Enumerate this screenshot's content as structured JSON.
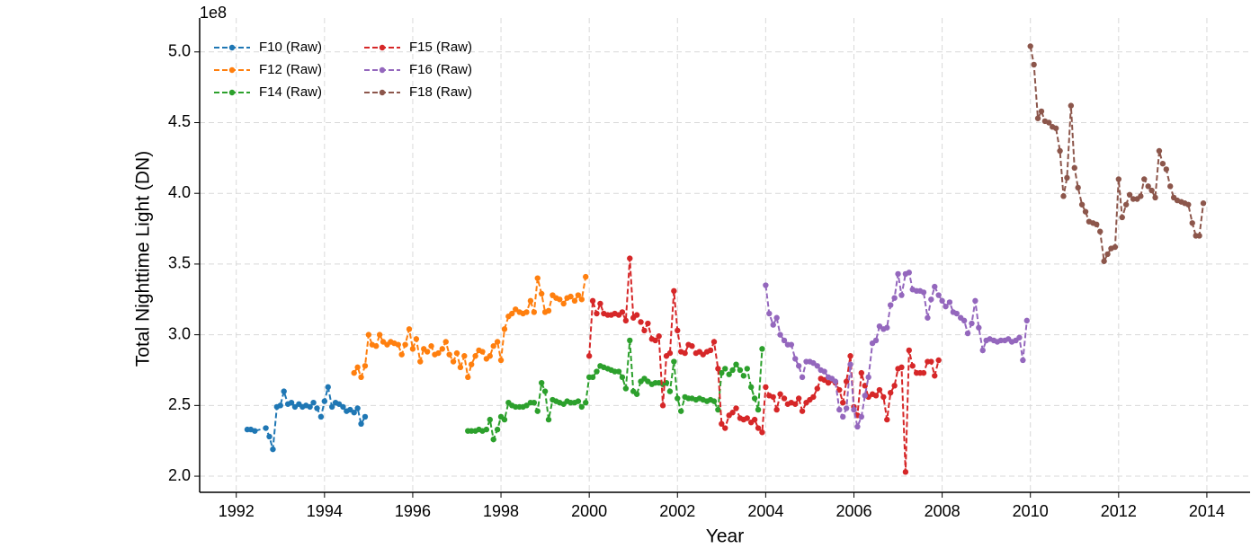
{
  "chart_data": {
    "type": "line",
    "xlabel": "Year",
    "ylabel": "Total Nighttime Light (DN)",
    "y_offset_label": "1e8",
    "xlim": [
      1991.17,
      2014.98
    ],
    "ylim": [
      1.886,
      5.24
    ],
    "xticks": [
      1992,
      1994,
      1996,
      1998,
      2000,
      2002,
      2004,
      2006,
      2008,
      2010,
      2012,
      2014
    ],
    "yticks": [
      {
        "value": 2,
        "label": "2.0"
      },
      2.5,
      {
        "value": 3,
        "label": "3.0"
      },
      3.5,
      {
        "value": 4,
        "label": "4.0"
      },
      4.5,
      {
        "value": 5,
        "label": "5.0"
      }
    ],
    "grid": true,
    "legend": "upper left",
    "line_style": "dashed",
    "series": [
      {
        "name": "F10 (Raw)",
        "color": "#1f77b4",
        "x": [
          1992.25,
          1992.33,
          1992.42,
          1992.67,
          1992.75,
          1992.83,
          1992.92,
          1993,
          1993.08,
          1993.17,
          1993.25,
          1993.33,
          1993.42,
          1993.5,
          1993.58,
          1993.67,
          1993.75,
          1993.83,
          1993.92,
          1994,
          1994.08,
          1994.17,
          1994.25,
          1994.33,
          1994.42,
          1994.5,
          1994.58,
          1994.67,
          1994.75,
          1994.83,
          1994.92
        ],
        "values": [
          2.33,
          2.33,
          2.32,
          2.34,
          2.28,
          2.19,
          2.49,
          2.5,
          2.6,
          2.51,
          2.52,
          2.49,
          2.51,
          2.49,
          2.5,
          2.49,
          2.52,
          2.48,
          2.42,
          2.53,
          2.63,
          2.49,
          2.52,
          2.51,
          2.49,
          2.46,
          2.47,
          2.45,
          2.48,
          2.37,
          2.42
        ]
      },
      {
        "name": "F12 (Raw)",
        "color": "#ff7f0e",
        "x": [
          1994.67,
          1994.75,
          1994.83,
          1994.92,
          1995,
          1995.08,
          1995.17,
          1995.25,
          1995.33,
          1995.42,
          1995.5,
          1995.58,
          1995.67,
          1995.75,
          1995.83,
          1995.92,
          1996,
          1996.08,
          1996.17,
          1996.25,
          1996.33,
          1996.42,
          1996.5,
          1996.58,
          1996.67,
          1996.75,
          1996.83,
          1996.92,
          1997,
          1997.08,
          1997.17,
          1997.25,
          1997.33,
          1997.42,
          1997.5,
          1997.58,
          1997.67,
          1997.75,
          1997.83,
          1997.92,
          1998,
          1998.08,
          1998.17,
          1998.25,
          1998.33,
          1998.42,
          1998.5,
          1998.58,
          1998.67,
          1998.75,
          1998.83,
          1998.92,
          1999,
          1999.08,
          1999.17,
          1999.25,
          1999.33,
          1999.42,
          1999.5,
          1999.58,
          1999.67,
          1999.75,
          1999.83,
          1999.92
        ],
        "values": [
          2.73,
          2.77,
          2.7,
          2.78,
          3.0,
          2.93,
          2.92,
          3.0,
          2.95,
          2.93,
          2.95,
          2.94,
          2.93,
          2.86,
          2.93,
          3.04,
          2.9,
          2.97,
          2.81,
          2.9,
          2.88,
          2.92,
          2.86,
          2.87,
          2.9,
          2.95,
          2.86,
          2.81,
          2.87,
          2.77,
          2.85,
          2.7,
          2.79,
          2.85,
          2.89,
          2.88,
          2.83,
          2.85,
          2.92,
          2.95,
          2.82,
          3.04,
          3.13,
          3.15,
          3.18,
          3.16,
          3.15,
          3.16,
          3.24,
          3.16,
          3.4,
          3.29,
          3.16,
          3.17,
          3.28,
          3.26,
          3.25,
          3.22,
          3.26,
          3.27,
          3.24,
          3.28,
          3.25,
          3.41
        ]
      },
      {
        "name": "F14 (Raw)",
        "color": "#2ca02c",
        "x": [
          1997.25,
          1997.33,
          1997.42,
          1997.5,
          1997.58,
          1997.67,
          1997.75,
          1997.83,
          1997.92,
          1998,
          1998.08,
          1998.17,
          1998.25,
          1998.33,
          1998.42,
          1998.5,
          1998.58,
          1998.67,
          1998.75,
          1998.83,
          1998.92,
          1999,
          1999.08,
          1999.17,
          1999.25,
          1999.33,
          1999.42,
          1999.5,
          1999.58,
          1999.67,
          1999.75,
          1999.83,
          1999.92,
          2000,
          2000.08,
          2000.17,
          2000.25,
          2000.33,
          2000.42,
          2000.5,
          2000.58,
          2000.67,
          2000.75,
          2000.83,
          2000.92,
          2001,
          2001.08,
          2001.17,
          2001.25,
          2001.33,
          2001.42,
          2001.5,
          2001.58,
          2001.67,
          2001.75,
          2001.83,
          2001.92,
          2002,
          2002.08,
          2002.17,
          2002.25,
          2002.33,
          2002.42,
          2002.5,
          2002.58,
          2002.67,
          2002.75,
          2002.83,
          2002.92,
          2003,
          2003.08,
          2003.17,
          2003.25,
          2003.33,
          2003.42,
          2003.5,
          2003.58,
          2003.67,
          2003.75,
          2003.83,
          2003.92
        ],
        "values": [
          2.32,
          2.32,
          2.32,
          2.33,
          2.32,
          2.33,
          2.4,
          2.26,
          2.33,
          2.42,
          2.4,
          2.52,
          2.5,
          2.49,
          2.49,
          2.49,
          2.5,
          2.52,
          2.52,
          2.46,
          2.66,
          2.6,
          2.4,
          2.54,
          2.53,
          2.52,
          2.51,
          2.53,
          2.52,
          2.52,
          2.53,
          2.49,
          2.52,
          2.7,
          2.7,
          2.74,
          2.78,
          2.77,
          2.76,
          2.75,
          2.74,
          2.74,
          2.7,
          2.62,
          2.96,
          2.6,
          2.58,
          2.67,
          2.69,
          2.67,
          2.65,
          2.66,
          2.66,
          2.65,
          2.66,
          2.6,
          2.81,
          2.55,
          2.46,
          2.56,
          2.55,
          2.55,
          2.54,
          2.55,
          2.54,
          2.53,
          2.54,
          2.53,
          2.47,
          2.73,
          2.76,
          2.72,
          2.75,
          2.79,
          2.75,
          2.71,
          2.76,
          2.63,
          2.55,
          2.47,
          2.9
        ]
      },
      {
        "name": "F15 (Raw)",
        "color": "#d62728",
        "x": [
          2000,
          2000.08,
          2000.17,
          2000.25,
          2000.33,
          2000.42,
          2000.5,
          2000.58,
          2000.67,
          2000.75,
          2000.83,
          2000.92,
          2001,
          2001.08,
          2001.17,
          2001.25,
          2001.33,
          2001.42,
          2001.5,
          2001.58,
          2001.67,
          2001.75,
          2001.83,
          2001.92,
          2002,
          2002.08,
          2002.17,
          2002.25,
          2002.33,
          2002.42,
          2002.5,
          2002.58,
          2002.67,
          2002.75,
          2002.83,
          2002.92,
          2003,
          2003.08,
          2003.17,
          2003.25,
          2003.33,
          2003.42,
          2003.5,
          2003.58,
          2003.67,
          2003.75,
          2003.83,
          2003.92,
          2004,
          2004.08,
          2004.17,
          2004.25,
          2004.33,
          2004.42,
          2004.5,
          2004.58,
          2004.67,
          2004.75,
          2004.83,
          2004.92,
          2005,
          2005.08,
          2005.17,
          2005.25,
          2005.33,
          2005.42,
          2005.5,
          2005.58,
          2005.67,
          2005.75,
          2005.83,
          2005.92,
          2006,
          2006.08,
          2006.17,
          2006.25,
          2006.33,
          2006.42,
          2006.5,
          2006.58,
          2006.67,
          2006.75,
          2006.83,
          2006.92,
          2007,
          2007.08,
          2007.17,
          2007.25,
          2007.33,
          2007.42,
          2007.5,
          2007.58,
          2007.67,
          2007.75,
          2007.83,
          2007.92
        ],
        "values": [
          2.85,
          3.24,
          3.15,
          3.22,
          3.15,
          3.14,
          3.14,
          3.15,
          3.14,
          3.16,
          3.1,
          3.54,
          3.12,
          3.14,
          3.09,
          3.03,
          3.08,
          2.97,
          2.96,
          2.99,
          2.5,
          2.85,
          2.87,
          3.31,
          3.03,
          2.88,
          2.87,
          2.93,
          2.92,
          2.87,
          2.88,
          2.86,
          2.88,
          2.89,
          2.95,
          2.76,
          2.37,
          2.34,
          2.43,
          2.45,
          2.48,
          2.41,
          2.4,
          2.41,
          2.38,
          2.4,
          2.34,
          2.31,
          2.63,
          2.57,
          2.56,
          2.47,
          2.58,
          2.55,
          2.51,
          2.52,
          2.51,
          2.55,
          2.46,
          2.52,
          2.54,
          2.56,
          2.62,
          2.69,
          2.68,
          2.66,
          2.68,
          2.66,
          2.61,
          2.52,
          2.67,
          2.85,
          2.49,
          2.43,
          2.73,
          2.64,
          2.56,
          2.58,
          2.57,
          2.61,
          2.56,
          2.4,
          2.59,
          2.64,
          2.76,
          2.77,
          2.03,
          2.89,
          2.78,
          2.73,
          2.73,
          2.73,
          2.81,
          2.81,
          2.71,
          2.82
        ]
      },
      {
        "name": "F16 (Raw)",
        "color": "#9467bd",
        "x": [
          2004,
          2004.08,
          2004.17,
          2004.25,
          2004.33,
          2004.42,
          2004.5,
          2004.58,
          2004.67,
          2004.75,
          2004.83,
          2004.92,
          2005,
          2005.08,
          2005.17,
          2005.25,
          2005.33,
          2005.42,
          2005.5,
          2005.58,
          2005.67,
          2005.75,
          2005.83,
          2005.92,
          2006,
          2006.08,
          2006.17,
          2006.25,
          2006.33,
          2006.42,
          2006.5,
          2006.58,
          2006.67,
          2006.75,
          2006.83,
          2006.92,
          2007,
          2007.08,
          2007.17,
          2007.25,
          2007.33,
          2007.42,
          2007.5,
          2007.58,
          2007.67,
          2007.75,
          2007.83,
          2007.92,
          2008,
          2008.08,
          2008.17,
          2008.25,
          2008.33,
          2008.42,
          2008.5,
          2008.58,
          2008.67,
          2008.75,
          2008.83,
          2008.92,
          2009,
          2009.08,
          2009.17,
          2009.25,
          2009.33,
          2009.42,
          2009.5,
          2009.58,
          2009.67,
          2009.75,
          2009.83,
          2009.92
        ],
        "values": [
          3.35,
          3.15,
          3.07,
          3.12,
          3.0,
          2.96,
          2.93,
          2.93,
          2.83,
          2.78,
          2.7,
          2.81,
          2.81,
          2.8,
          2.78,
          2.75,
          2.74,
          2.7,
          2.69,
          2.67,
          2.47,
          2.42,
          2.48,
          2.79,
          2.47,
          2.35,
          2.42,
          2.57,
          2.7,
          2.94,
          2.96,
          3.06,
          3.04,
          3.05,
          3.21,
          3.26,
          3.43,
          3.28,
          3.43,
          3.44,
          3.32,
          3.31,
          3.31,
          3.3,
          3.12,
          3.25,
          3.34,
          3.28,
          3.24,
          3.2,
          3.23,
          3.16,
          3.15,
          3.12,
          3.1,
          3.01,
          3.08,
          3.24,
          3.05,
          2.89,
          2.96,
          2.97,
          2.96,
          2.95,
          2.96,
          2.96,
          2.97,
          2.95,
          2.96,
          2.98,
          2.82,
          3.1
        ]
      },
      {
        "name": "F18 (Raw)",
        "color": "#8c564b",
        "x": [
          2010,
          2010.08,
          2010.17,
          2010.25,
          2010.33,
          2010.42,
          2010.5,
          2010.58,
          2010.67,
          2010.75,
          2010.83,
          2010.92,
          2011,
          2011.08,
          2011.17,
          2011.25,
          2011.33,
          2011.42,
          2011.5,
          2011.58,
          2011.67,
          2011.75,
          2011.83,
          2011.92,
          2012,
          2012.08,
          2012.17,
          2012.25,
          2012.33,
          2012.42,
          2012.5,
          2012.58,
          2012.67,
          2012.75,
          2012.83,
          2012.92,
          2013,
          2013.08,
          2013.17,
          2013.25,
          2013.33,
          2013.42,
          2013.5,
          2013.58,
          2013.67,
          2013.75,
          2013.83,
          2013.92
        ],
        "values": [
          5.04,
          4.91,
          4.53,
          4.58,
          4.51,
          4.5,
          4.47,
          4.46,
          4.3,
          3.98,
          4.11,
          4.62,
          4.18,
          4.04,
          3.92,
          3.87,
          3.8,
          3.79,
          3.78,
          3.73,
          3.52,
          3.57,
          3.61,
          3.62,
          4.1,
          3.83,
          3.92,
          3.99,
          3.96,
          3.96,
          3.98,
          4.1,
          4.05,
          4.02,
          3.97,
          4.3,
          4.21,
          4.17,
          4.05,
          3.97,
          3.95,
          3.94,
          3.93,
          3.92,
          3.79,
          3.7,
          3.7,
          3.93
        ]
      }
    ]
  }
}
